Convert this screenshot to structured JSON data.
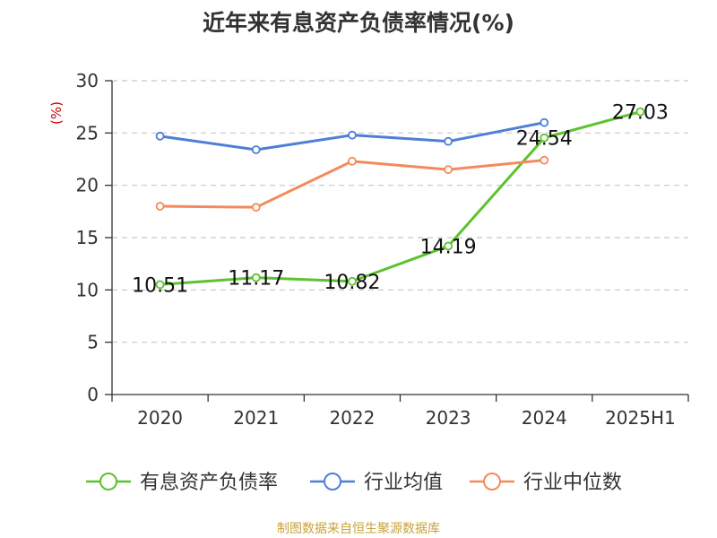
{
  "chart_data": {
    "type": "line",
    "title": "近年来有息资产负债率情况(%)",
    "ylabel": "(%)",
    "xlabel": "",
    "categories": [
      "2020",
      "2021",
      "2022",
      "2023",
      "2024",
      "2025H1"
    ],
    "ylim": [
      0,
      30
    ],
    "yticks": [
      0,
      5,
      10,
      15,
      20,
      25,
      30
    ],
    "grid": true,
    "legend_position": "bottom",
    "series": [
      {
        "name": "有息资产负债率",
        "color": "#5cc22e",
        "values": [
          10.51,
          11.17,
          10.82,
          14.19,
          24.54,
          27.03
        ],
        "labels": [
          "10.51",
          "11.17",
          "10.82",
          "14.19",
          "24.54",
          "27.03"
        ]
      },
      {
        "name": "行业均值",
        "color": "#4e7fd6",
        "values": [
          24.7,
          23.4,
          24.8,
          24.2,
          26.0,
          null
        ]
      },
      {
        "name": "行业中位数",
        "color": "#f48a5c",
        "values": [
          18.0,
          17.9,
          22.3,
          21.5,
          22.4,
          null
        ]
      }
    ]
  },
  "source_text": "制图数据来自恒生聚源数据库"
}
